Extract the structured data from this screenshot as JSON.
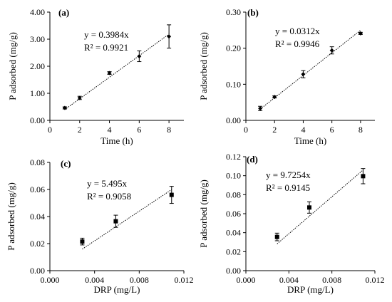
{
  "chart_data": [
    {
      "type": "scatter",
      "panel_label": "(a)",
      "xlabel": "Time (h)",
      "ylabel": "P adsorbed (mg/g)",
      "xlim": [
        0,
        9
      ],
      "ylim": [
        0,
        4
      ],
      "xticks": [
        0,
        2,
        4,
        6,
        8
      ],
      "yticks": [
        0,
        1,
        2,
        3,
        4
      ],
      "xtick_labels": [
        "0",
        "2",
        "4",
        "6",
        "8"
      ],
      "ytick_labels": [
        "0.00",
        "1.00",
        "2.00",
        "3.00",
        "4.00"
      ],
      "marker": "diamond",
      "series": [
        {
          "x": [
            1,
            2,
            4,
            6,
            8
          ],
          "y": [
            0.46,
            0.83,
            1.75,
            2.37,
            3.1
          ],
          "error": [
            0.04,
            0.06,
            0.05,
            0.2,
            0.43
          ]
        }
      ],
      "trendline": {
        "slope": 0.3984,
        "x_range": [
          1,
          8
        ]
      },
      "annotations": [
        "y = 0.3984x",
        "R² = 0.9921"
      ],
      "grid": false
    },
    {
      "type": "scatter",
      "panel_label": "(b)",
      "xlabel": "Time (h)",
      "ylabel": "P adsorbed (mg/g)",
      "xlim": [
        0,
        9
      ],
      "ylim": [
        0,
        0.3
      ],
      "xticks": [
        0,
        2,
        4,
        6,
        8
      ],
      "yticks": [
        0,
        0.1,
        0.2,
        0.3
      ],
      "xtick_labels": [
        "0",
        "2",
        "4",
        "6",
        "8"
      ],
      "ytick_labels": [
        "0.00",
        "0.10",
        "0.20",
        "0.30"
      ],
      "marker": "diamond",
      "series": [
        {
          "x": [
            1,
            2,
            4,
            6,
            8
          ],
          "y": [
            0.033,
            0.065,
            0.128,
            0.194,
            0.241
          ],
          "error": [
            0.006,
            0.003,
            0.01,
            0.01,
            0.003
          ]
        }
      ],
      "trendline": {
        "slope": 0.0312,
        "x_range": [
          1,
          8
        ]
      },
      "annotations": [
        "y = 0.0312x",
        "R² = 0.9946"
      ],
      "grid": false
    },
    {
      "type": "scatter",
      "panel_label": "(c)",
      "xlabel": "DRP (mg/L)",
      "ylabel": "P adsorbed (mg/g)",
      "xlim": [
        0,
        0.012
      ],
      "ylim": [
        0,
        0.08
      ],
      "xticks": [
        0,
        0.004,
        0.008,
        0.012
      ],
      "yticks": [
        0,
        0.02,
        0.04,
        0.06,
        0.08
      ],
      "xtick_labels": [
        "0.000",
        "0.004",
        "0.008",
        "0.012"
      ],
      "ytick_labels": [
        "0.00",
        "0.02",
        "0.04",
        "0.06",
        "0.08"
      ],
      "marker": "square",
      "series": [
        {
          "x": [
            0.0029,
            0.0059,
            0.0109
          ],
          "y": [
            0.0215,
            0.0365,
            0.056
          ],
          "error": [
            0.0025,
            0.0045,
            0.0063
          ]
        }
      ],
      "trendline": {
        "slope": 5.495,
        "x_range": [
          0.0029,
          0.0109
        ]
      },
      "annotations": [
        "y = 5.495x",
        "R² = 0.9058"
      ],
      "grid": false
    },
    {
      "type": "scatter",
      "panel_label": "(d)",
      "xlabel": "DRP (mg/L)",
      "ylabel": "P adsorbed  (mg/g)",
      "xlim": [
        0,
        0.012
      ],
      "ylim": [
        0,
        0.12
      ],
      "xticks": [
        0,
        0.004,
        0.008,
        0.012
      ],
      "yticks": [
        0,
        0.02,
        0.04,
        0.06,
        0.08,
        0.1,
        0.12
      ],
      "xtick_labels": [
        "0.000",
        "0.004",
        "0.008",
        "0.012"
      ],
      "ytick_labels": [
        "0.00",
        "0.02",
        "0.04",
        "0.06",
        "0.08",
        "0.10",
        "0.12"
      ],
      "marker": "square",
      "series": [
        {
          "x": [
            0.0029,
            0.0059,
            0.0109
          ],
          "y": [
            0.0355,
            0.0665,
            0.0995
          ],
          "error": [
            0.004,
            0.006,
            0.008
          ]
        }
      ],
      "trendline": {
        "slope": 9.7254,
        "x_range": [
          0.0029,
          0.0109
        ]
      },
      "annotations": [
        "y = 9.7254x",
        "R² = 0.9145"
      ],
      "grid": false
    }
  ]
}
